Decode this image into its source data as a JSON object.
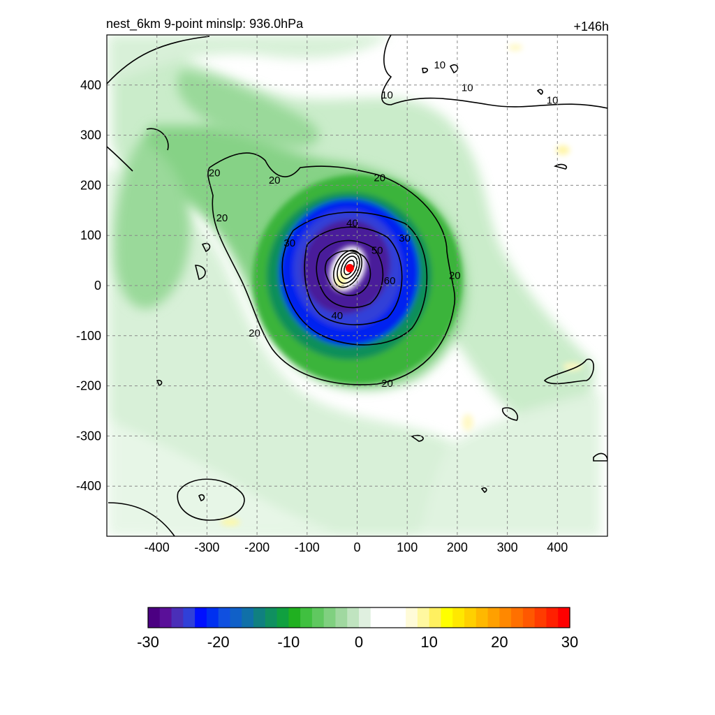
{
  "title_left": "nest_6km  9-point minslp: 936.0hPa",
  "title_right": "+146h",
  "chart_data": {
    "type": "heatmap",
    "x_ticks": [
      -400,
      -300,
      -200,
      -100,
      0,
      100,
      200,
      300,
      400
    ],
    "y_ticks": [
      400,
      300,
      200,
      100,
      0,
      -100,
      -200,
      -300,
      -400
    ],
    "xlim": [
      -500,
      500
    ],
    "ylim": [
      -500,
      500
    ],
    "grid": true,
    "colorbar": {
      "range": [
        -30,
        30
      ],
      "ticks": [
        -30,
        -20,
        -10,
        0,
        10,
        20,
        30
      ],
      "colors": [
        "#4b0082",
        "#5a1099",
        "#4a2fb8",
        "#3040d8",
        "#0010ff",
        "#0030f0",
        "#1050e0",
        "#1060c8",
        "#1070a8",
        "#108080",
        "#109060",
        "#10a040",
        "#20b020",
        "#40c040",
        "#60c860",
        "#80d080",
        "#a0d8a0",
        "#c0e4c0",
        "#e0f0e0",
        "#ffffff",
        "#ffffff",
        "#ffffff",
        "#fffbd8",
        "#fff8a0",
        "#fff060",
        "#ffff00",
        "#ffe800",
        "#ffd000",
        "#ffb800",
        "#ffa000",
        "#ff8800",
        "#ff7000",
        "#ff5800",
        "#ff3c00",
        "#ff2000",
        "#ff0000"
      ]
    },
    "contour_levels": [
      10,
      20,
      30,
      40,
      50,
      60
    ],
    "contour_labels": [
      {
        "text": "10",
        "x": 165,
        "y": 440
      },
      {
        "text": "10",
        "x": 60,
        "y": 380
      },
      {
        "text": "10",
        "x": 220,
        "y": 395
      },
      {
        "text": "10",
        "x": 390,
        "y": 370
      },
      {
        "text": "20",
        "x": -285,
        "y": 225
      },
      {
        "text": "20",
        "x": -165,
        "y": 210
      },
      {
        "text": "20",
        "x": 45,
        "y": 215
      },
      {
        "text": "20",
        "x": -270,
        "y": 135
      },
      {
        "text": "20",
        "x": 195,
        "y": 20
      },
      {
        "text": "20",
        "x": -205,
        "y": -95
      },
      {
        "text": "20",
        "x": 60,
        "y": -195
      },
      {
        "text": "30",
        "x": -135,
        "y": 85
      },
      {
        "text": "30",
        "x": 95,
        "y": 95
      },
      {
        "text": "40",
        "x": -10,
        "y": 125
      },
      {
        "text": "40",
        "x": -40,
        "y": -60
      },
      {
        "text": "50",
        "x": 40,
        "y": 70
      },
      {
        "text": "60",
        "x": 65,
        "y": 10
      }
    ],
    "center_marker": {
      "x": -15,
      "y": 35,
      "color": "#ff0000"
    }
  }
}
